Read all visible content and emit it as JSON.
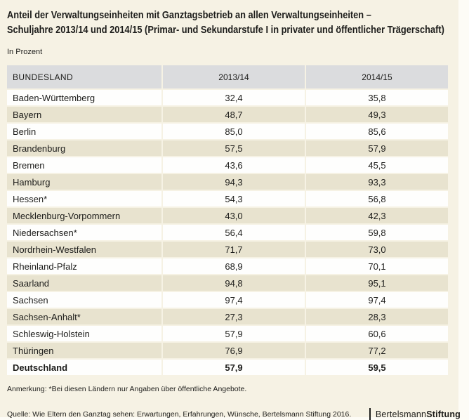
{
  "title": {
    "line1": "Anteil der Verwaltungseinheiten mit Ganztagsbetrieb an allen Verwaltungseinheiten –",
    "line2": "Schuljahre 2013/14 und 2014/15 (Primar- und Sekundarstufe I in privater und öffentlicher Trägerschaft)"
  },
  "subtitle": "In Prozent",
  "table": {
    "columns": [
      "BUNDESLAND",
      "2013/14",
      "2014/15"
    ],
    "rows": [
      {
        "land": "Baden-Württemberg",
        "y2013": "32,4",
        "y2014": "35,8"
      },
      {
        "land": "Bayern",
        "y2013": "48,7",
        "y2014": "49,3"
      },
      {
        "land": "Berlin",
        "y2013": "85,0",
        "y2014": "85,6"
      },
      {
        "land": "Brandenburg",
        "y2013": "57,5",
        "y2014": "57,9"
      },
      {
        "land": "Bremen",
        "y2013": "43,6",
        "y2014": "45,5"
      },
      {
        "land": "Hamburg",
        "y2013": "94,3",
        "y2014": "93,3"
      },
      {
        "land": "Hessen*",
        "y2013": "54,3",
        "y2014": "56,8"
      },
      {
        "land": "Mecklenburg-Vorpommern",
        "y2013": "43,0",
        "y2014": "42,3"
      },
      {
        "land": "Niedersachsen*",
        "y2013": "56,4",
        "y2014": "59,8"
      },
      {
        "land": "Nordrhein-Westfalen",
        "y2013": "71,7",
        "y2014": "73,0"
      },
      {
        "land": "Rheinland-Pfalz",
        "y2013": "68,9",
        "y2014": "70,1"
      },
      {
        "land": "Saarland",
        "y2013": "94,8",
        "y2014": "95,1"
      },
      {
        "land": "Sachsen",
        "y2013": "97,4",
        "y2014": "97,4"
      },
      {
        "land": "Sachsen-Anhalt*",
        "y2013": "27,3",
        "y2014": "28,3"
      },
      {
        "land": "Schleswig-Holstein",
        "y2013": "57,9",
        "y2014": "60,6"
      },
      {
        "land": "Thüringen",
        "y2013": "76,9",
        "y2014": "77,2"
      },
      {
        "land": "Deutschland",
        "y2013": "57,9",
        "y2014": "59,5"
      }
    ]
  },
  "footnote": "Anmerkung: *Bei diesen Ländern nur Angaben über öffentliche Angebote.",
  "source": "Quelle: Wie Eltern den Ganztag sehen: Erwartungen, Erfahrungen, Wünsche, Bertelsmann Stiftung 2016.",
  "logo": {
    "name": "Bertelsmann",
    "suffix": "Stiftung"
  },
  "colors": {
    "page_background": "#f6f2e4",
    "row_alternate": "#e8e3cf",
    "row_white": "#fefefd",
    "header_background": "#dbdcde",
    "text": "#1d1d1b"
  },
  "chart_data": {
    "type": "table",
    "title": "Anteil der Verwaltungseinheiten mit Ganztagsbetrieb an allen Verwaltungseinheiten – Schuljahre 2013/14 und 2014/15 (Primar- und Sekundarstufe I in privater und öffentlicher Trägerschaft)",
    "unit": "In Prozent",
    "categories": [
      "Baden-Württemberg",
      "Bayern",
      "Berlin",
      "Brandenburg",
      "Bremen",
      "Hamburg",
      "Hessen",
      "Mecklenburg-Vorpommern",
      "Niedersachsen",
      "Nordrhein-Westfalen",
      "Rheinland-Pfalz",
      "Saarland",
      "Sachsen",
      "Sachsen-Anhalt",
      "Schleswig-Holstein",
      "Thüringen",
      "Deutschland"
    ],
    "series": [
      {
        "name": "2013/14",
        "values": [
          32.4,
          48.7,
          85.0,
          57.5,
          43.6,
          94.3,
          54.3,
          43.0,
          56.4,
          71.7,
          68.9,
          94.8,
          97.4,
          27.3,
          57.9,
          76.9,
          57.9
        ]
      },
      {
        "name": "2014/15",
        "values": [
          35.8,
          49.3,
          85.6,
          57.9,
          45.5,
          93.3,
          56.8,
          42.3,
          59.8,
          73.0,
          70.1,
          95.1,
          97.4,
          28.3,
          60.6,
          77.2,
          59.5
        ]
      }
    ],
    "footnote": "Anmerkung: *Bei diesen Ländern nur Angaben über öffentliche Angebote.",
    "source": "Quelle: Wie Eltern den Ganztag sehen: Erwartungen, Erfahrungen, Wünsche, Bertelsmann Stiftung 2016."
  }
}
